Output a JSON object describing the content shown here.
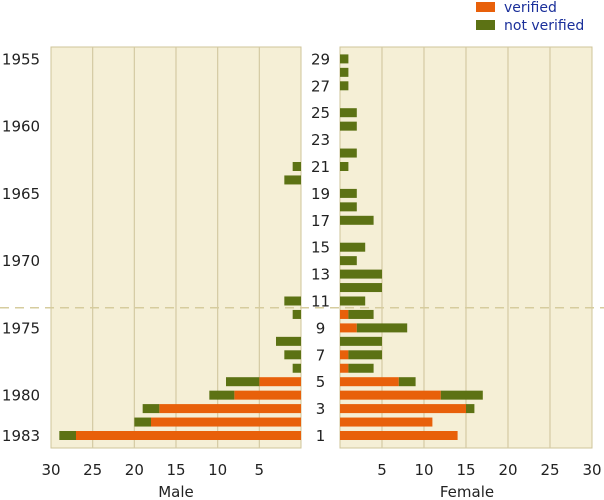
{
  "chart_data": {
    "type": "bar",
    "orientation": "horizontal",
    "layout": "population-pyramid",
    "panels": [
      {
        "name": "Male",
        "xlabel": "Male",
        "xlim": [
          30,
          0
        ],
        "xticks": [
          "30",
          "25",
          "20",
          "15",
          "10",
          "5"
        ]
      },
      {
        "name": "Female",
        "xlabel": "Female",
        "xlim": [
          0,
          30
        ],
        "xticks": [
          "5",
          "10",
          "15",
          "20",
          "25",
          "30"
        ]
      }
    ],
    "center_axis": {
      "ages": [
        29,
        28,
        27,
        26,
        25,
        24,
        23,
        22,
        21,
        20,
        19,
        18,
        17,
        16,
        15,
        14,
        13,
        12,
        11,
        10,
        9,
        8,
        7,
        6,
        5,
        4,
        3,
        2,
        1
      ],
      "labels": [
        "29",
        "27",
        "25",
        "23",
        "21",
        "19",
        "17",
        "15",
        "13",
        "11",
        "9",
        "7",
        "5",
        "3",
        "1"
      ]
    },
    "year_axis": {
      "labels": [
        {
          "text": "1955",
          "age": 29
        },
        {
          "text": "1960",
          "age": 24
        },
        {
          "text": "1965",
          "age": 19
        },
        {
          "text": "1970",
          "age": 14
        },
        {
          "text": "1975",
          "age": 9
        },
        {
          "text": "1980",
          "age": 4
        },
        {
          "text": "1983",
          "age": 1
        }
      ]
    },
    "reference_line_between_ages": [
      11,
      10
    ],
    "series": [
      {
        "name": "verified",
        "color": "#e8600a",
        "male": [
          0,
          0,
          0,
          0,
          0,
          0,
          0,
          0,
          0,
          0,
          0,
          0,
          0,
          0,
          0,
          0,
          0,
          0,
          0,
          0,
          0,
          0,
          0,
          0,
          5,
          8,
          17,
          18,
          27
        ],
        "female": [
          0,
          0,
          0,
          0,
          0,
          0,
          0,
          0,
          0,
          0,
          0,
          0,
          0,
          0,
          0,
          0,
          0,
          0,
          0,
          1,
          2,
          0,
          1,
          1,
          7,
          12,
          15,
          11,
          14
        ]
      },
      {
        "name": "not verified",
        "color": "#5c7214",
        "male": [
          0,
          0,
          0,
          0,
          0,
          0,
          0,
          0,
          1,
          2,
          0,
          0,
          0,
          0,
          0,
          0,
          0,
          0,
          2,
          1,
          0,
          3,
          2,
          1,
          4,
          3,
          2,
          2,
          2
        ],
        "female": [
          1,
          1,
          1,
          0,
          2,
          2,
          0,
          2,
          1,
          0,
          2,
          2,
          4,
          0,
          3,
          2,
          5,
          5,
          3,
          3,
          6,
          5,
          4,
          3,
          2,
          5,
          1,
          0,
          0
        ]
      }
    ],
    "grid": true,
    "legend_position": "top-right"
  }
}
